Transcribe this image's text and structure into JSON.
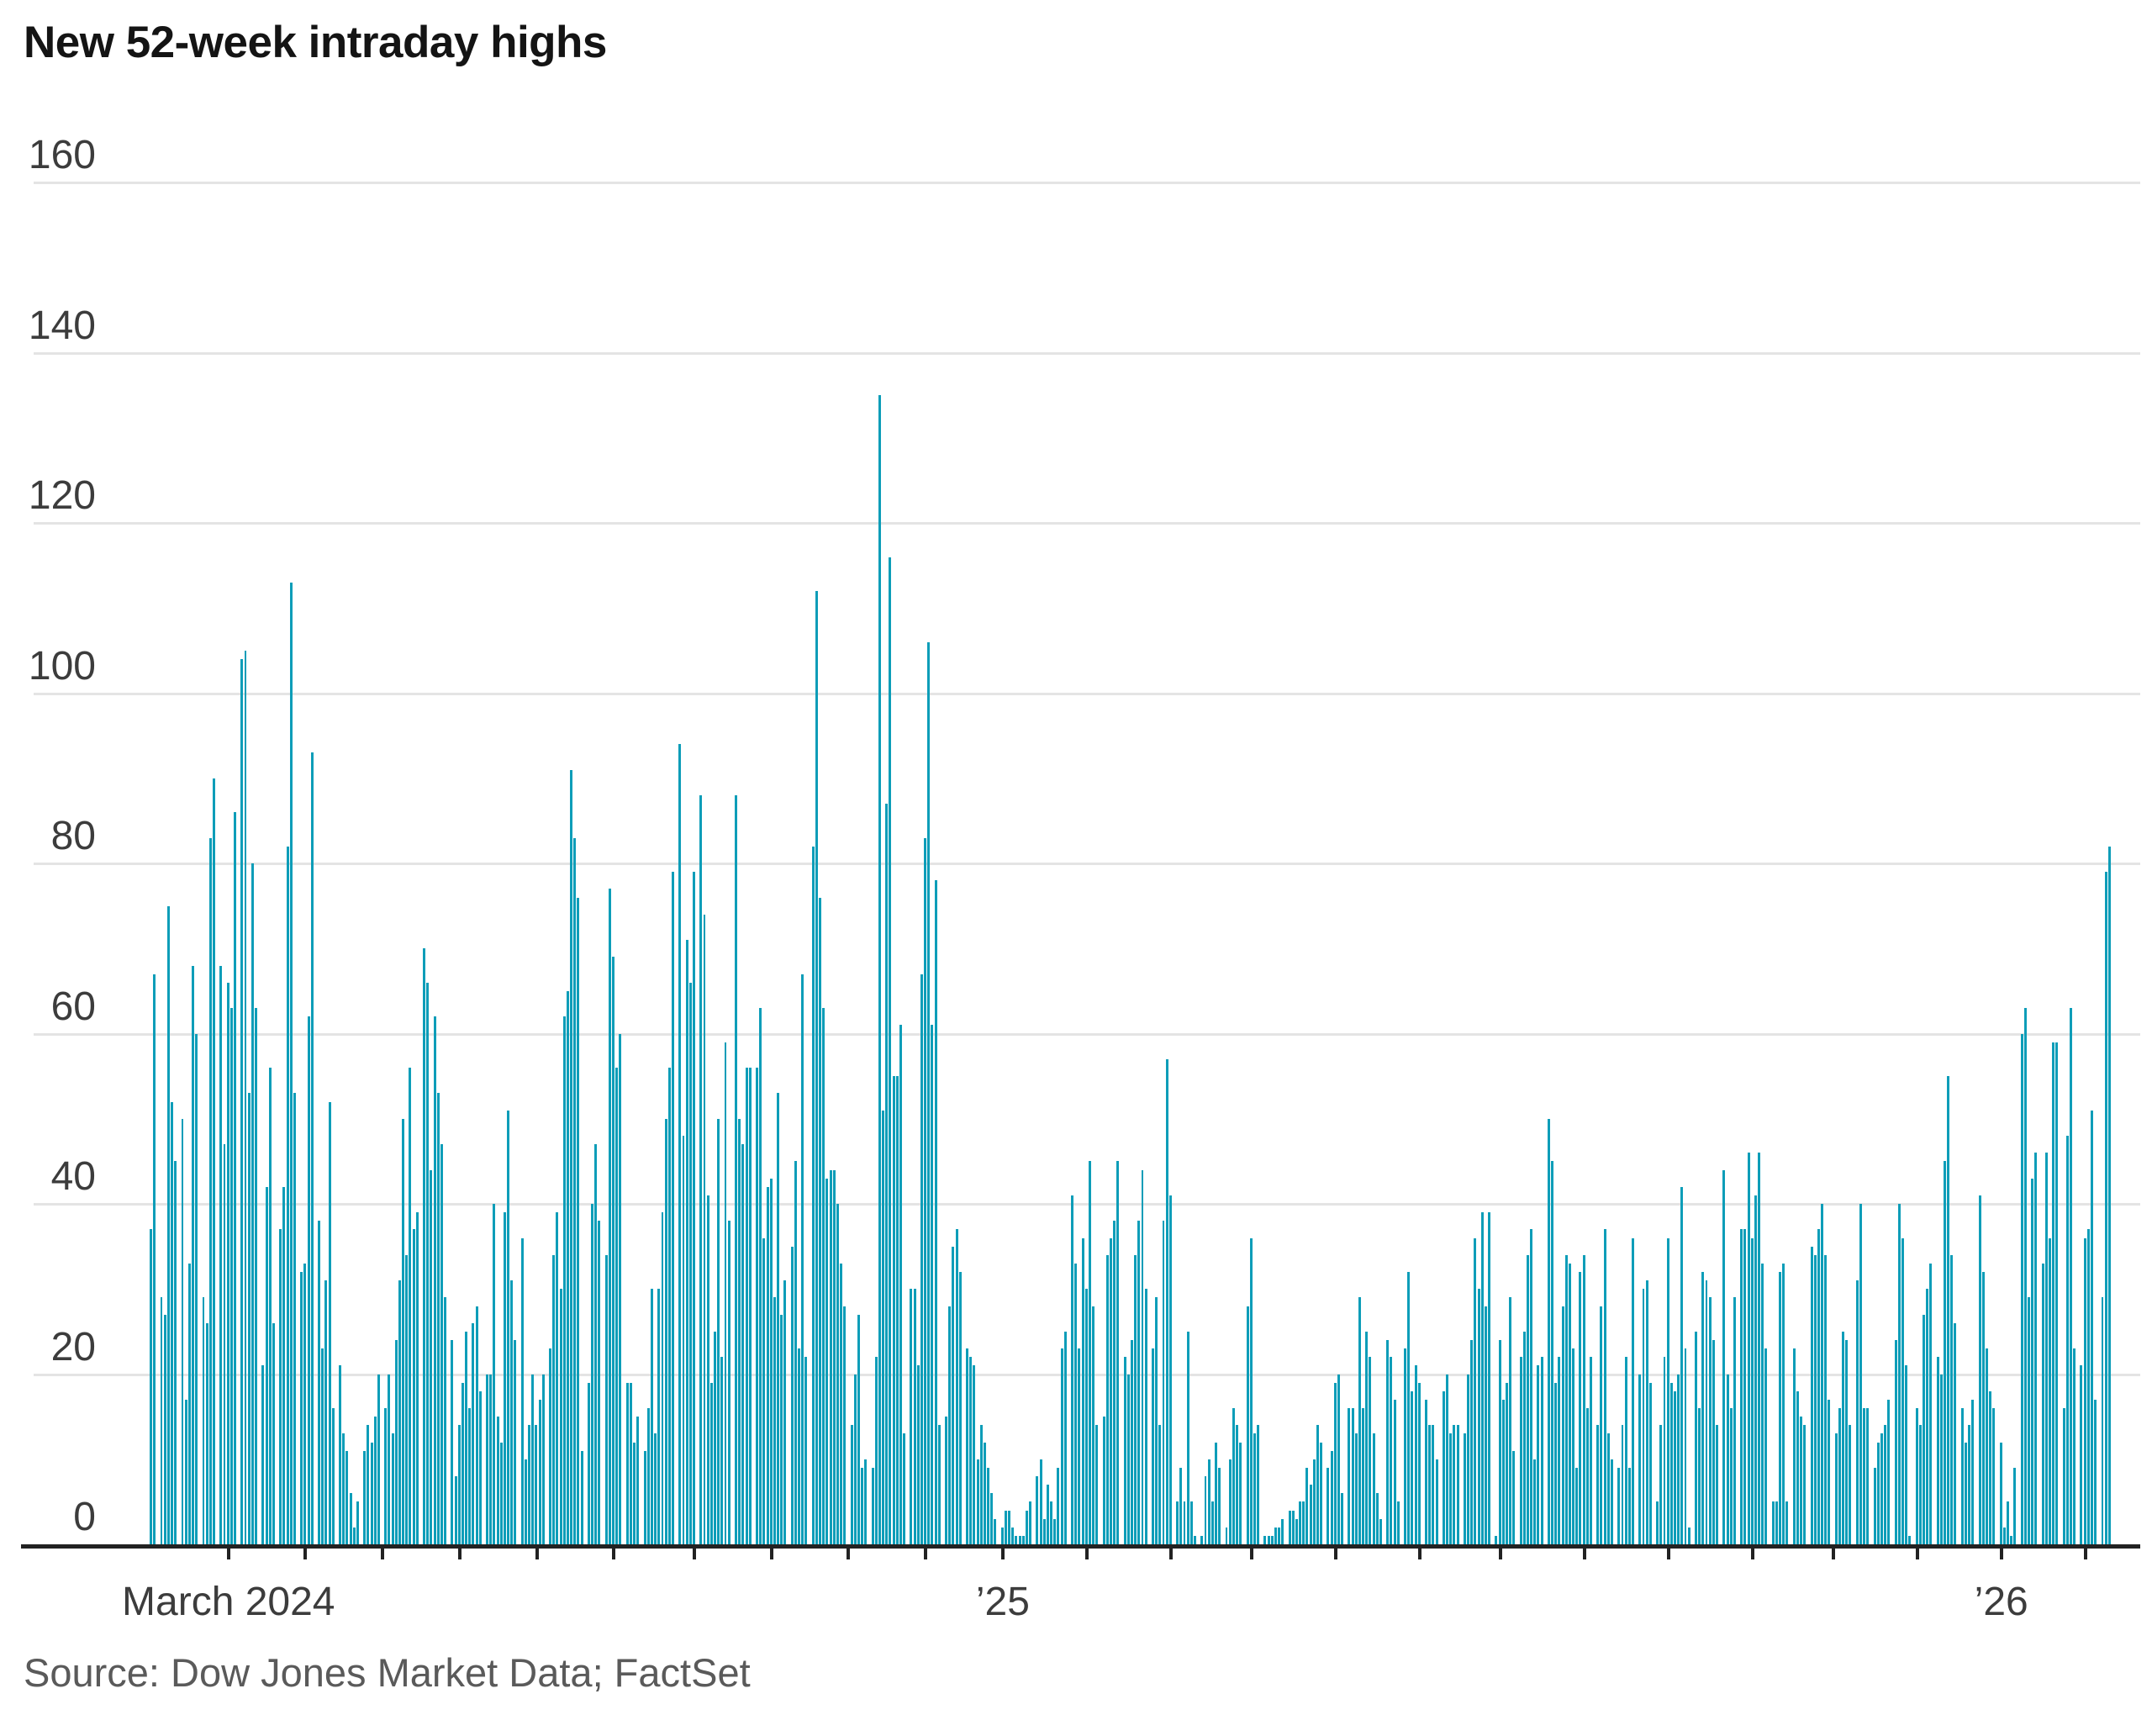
{
  "title": "New 52-week intraday highs",
  "source": "Source: Dow Jones Market Data; FactSet",
  "colors": {
    "bar": "#0d9db8",
    "gridline": "#e4e4e4",
    "axis": "#222222",
    "label": "#3c3c3c"
  },
  "chart_data": {
    "type": "bar",
    "title": "New 52-week intraday highs",
    "xlabel": "",
    "ylabel": "",
    "ylim": [
      0,
      160
    ],
    "grid": true,
    "y_ticks": [
      0,
      20,
      40,
      60,
      80,
      100,
      120,
      140,
      160
    ],
    "x_labeled_ticks": [
      {
        "index": 22,
        "label": "March 2024"
      },
      {
        "index": 243,
        "label": "’25"
      },
      {
        "index": 528,
        "label": "’26"
      }
    ],
    "x_tick_indices": [
      22,
      44,
      66,
      88,
      110,
      132,
      155,
      177,
      199,
      221,
      243,
      267,
      291,
      314,
      338,
      362,
      385,
      409,
      433,
      457,
      480,
      504,
      528,
      552
    ],
    "values": [
      37,
      67,
      0,
      29,
      27,
      75,
      52,
      45,
      0,
      50,
      17,
      33,
      68,
      60,
      0,
      29,
      26,
      83,
      90,
      0,
      68,
      47,
      66,
      63,
      86,
      0,
      104,
      105,
      53,
      80,
      63,
      0,
      21,
      42,
      56,
      26,
      0,
      37,
      42,
      82,
      113,
      53,
      0,
      32,
      33,
      62,
      93,
      0,
      38,
      23,
      31,
      52,
      16,
      0,
      21,
      13,
      11,
      6,
      2,
      5,
      0,
      11,
      14,
      12,
      15,
      20,
      0,
      16,
      20,
      13,
      24,
      31,
      50,
      34,
      56,
      37,
      39,
      0,
      70,
      66,
      44,
      62,
      53,
      47,
      29,
      0,
      24,
      8,
      14,
      19,
      25,
      16,
      26,
      28,
      18,
      0,
      20,
      20,
      40,
      15,
      12,
      39,
      51,
      31,
      24,
      0,
      36,
      10,
      14,
      20,
      14,
      17,
      20,
      0,
      23,
      34,
      39,
      30,
      62,
      65,
      91,
      83,
      76,
      11,
      0,
      19,
      40,
      47,
      38,
      0,
      34,
      77,
      69,
      56,
      60,
      0,
      19,
      19,
      12,
      15,
      0,
      11,
      16,
      30,
      13,
      30,
      39,
      50,
      56,
      79,
      0,
      94,
      48,
      71,
      66,
      79,
      0,
      88,
      74,
      41,
      19,
      25,
      50,
      22,
      59,
      38,
      0,
      88,
      50,
      47,
      56,
      56,
      0,
      56,
      63,
      36,
      42,
      43,
      29,
      53,
      27,
      31,
      0,
      35,
      45,
      23,
      67,
      22,
      0,
      82,
      112,
      76,
      63,
      43,
      44,
      44,
      40,
      33,
      28,
      0,
      14,
      20,
      27,
      9,
      10,
      0,
      9,
      22,
      135,
      51,
      87,
      116,
      55,
      55,
      61,
      13,
      0,
      30,
      30,
      21,
      67,
      83,
      106,
      61,
      78,
      14,
      0,
      15,
      28,
      35,
      37,
      32,
      0,
      23,
      22,
      21,
      10,
      14,
      12,
      9,
      6,
      3,
      0,
      2,
      4,
      4,
      2,
      1,
      1,
      1,
      4,
      5,
      0,
      8,
      10,
      3,
      7,
      5,
      3,
      9,
      23,
      25,
      0,
      41,
      33,
      23,
      36,
      30,
      45,
      28,
      14,
      0,
      15,
      34,
      36,
      38,
      45,
      0,
      22,
      20,
      24,
      34,
      38,
      44,
      30,
      0,
      23,
      29,
      14,
      38,
      57,
      41,
      0,
      5,
      9,
      5,
      25,
      5,
      1,
      0,
      1,
      8,
      10,
      5,
      12,
      9,
      0,
      2,
      10,
      16,
      14,
      12,
      0,
      28,
      36,
      13,
      14,
      0,
      1,
      1,
      1,
      2,
      2,
      3,
      0,
      4,
      4,
      3,
      5,
      5,
      9,
      7,
      10,
      14,
      12,
      0,
      9,
      11,
      19,
      20,
      6,
      0,
      16,
      16,
      13,
      29,
      16,
      25,
      22,
      13,
      6,
      3,
      0,
      24,
      22,
      17,
      5,
      0,
      23,
      32,
      18,
      21,
      19,
      0,
      17,
      14,
      14,
      10,
      0,
      18,
      20,
      13,
      14,
      14,
      0,
      13,
      20,
      24,
      36,
      30,
      39,
      28,
      39,
      0,
      1,
      24,
      17,
      19,
      29,
      11,
      0,
      22,
      25,
      34,
      37,
      10,
      21,
      22,
      0,
      50,
      45,
      19,
      22,
      28,
      34,
      33,
      23,
      9,
      32,
      34,
      16,
      22,
      0,
      14,
      28,
      37,
      13,
      10,
      0,
      9,
      14,
      22,
      9,
      36,
      0,
      20,
      30,
      31,
      19,
      0,
      5,
      14,
      22,
      36,
      19,
      18,
      20,
      42,
      23,
      2,
      0,
      25,
      16,
      32,
      31,
      29,
      24,
      14,
      0,
      44,
      20,
      16,
      29,
      0,
      37,
      37,
      46,
      36,
      41,
      46,
      33,
      23,
      0,
      5,
      5,
      32,
      33,
      5,
      0,
      23,
      18,
      15,
      14,
      0,
      35,
      34,
      37,
      40,
      34,
      17,
      0,
      13,
      16,
      25,
      24,
      14,
      0,
      31,
      40,
      16,
      16,
      0,
      9,
      12,
      13,
      14,
      17,
      0,
      24,
      40,
      36,
      21,
      1,
      0,
      16,
      14,
      27,
      30,
      33,
      0,
      22,
      20,
      45,
      55,
      34,
      26,
      0,
      16,
      12,
      14,
      17,
      0,
      41,
      32,
      23,
      18,
      16,
      0,
      12,
      2,
      5,
      1,
      9,
      0,
      60,
      63,
      29,
      43,
      46,
      0,
      33,
      46,
      36,
      59,
      59,
      0,
      16,
      48,
      63,
      23,
      0,
      21,
      36,
      37,
      51,
      17,
      0,
      29,
      79,
      82
    ]
  }
}
